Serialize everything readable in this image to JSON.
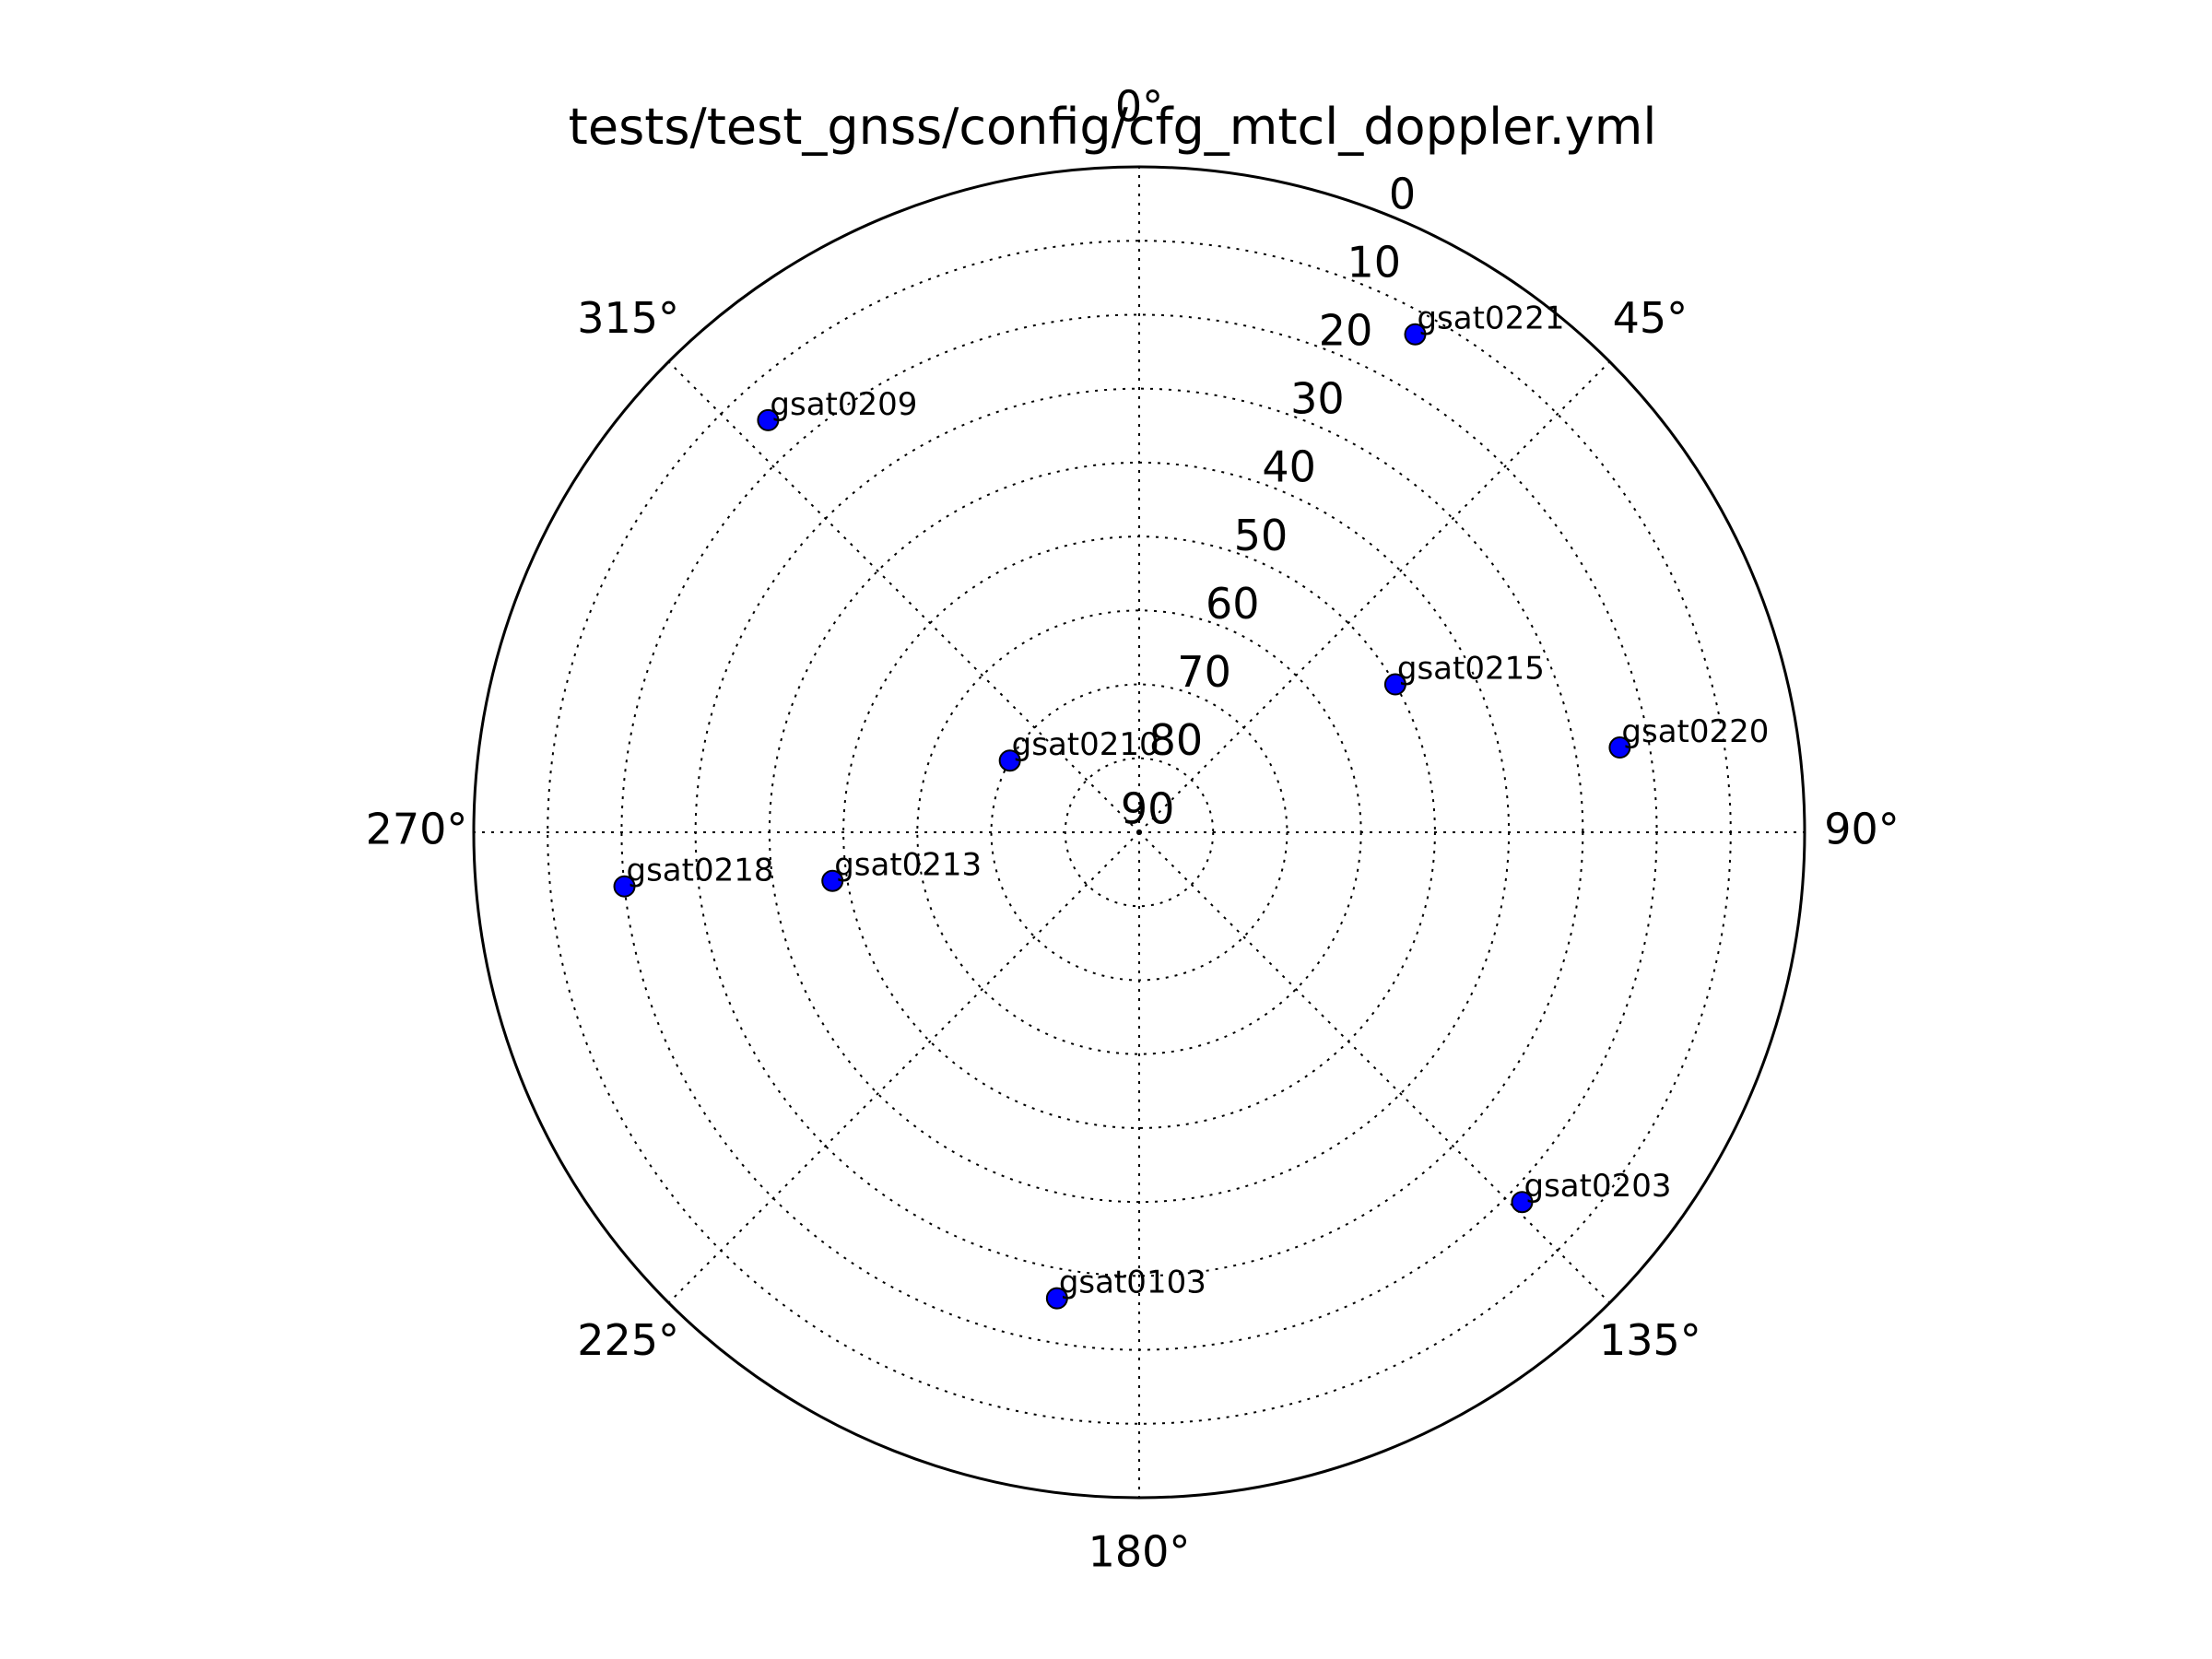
{
  "chart_data": {
    "type": "scatter",
    "projection": "polar",
    "title": "tests/test_gnss/config/cfg_mtcl_doppler.yml",
    "theta_direction": "clockwise",
    "theta_zero": "north",
    "angle_ticks": [
      {
        "value": 0,
        "label": "0°"
      },
      {
        "value": 45,
        "label": "45°"
      },
      {
        "value": 90,
        "label": "90°"
      },
      {
        "value": 135,
        "label": "135°"
      },
      {
        "value": 180,
        "label": "180°"
      },
      {
        "value": 225,
        "label": "225°"
      },
      {
        "value": 270,
        "label": "270°"
      },
      {
        "value": 315,
        "label": "315°"
      }
    ],
    "radial_ticks": [
      {
        "value": 0,
        "label": "0"
      },
      {
        "value": 10,
        "label": "10"
      },
      {
        "value": 20,
        "label": "20"
      },
      {
        "value": 30,
        "label": "30"
      },
      {
        "value": 40,
        "label": "40"
      },
      {
        "value": 50,
        "label": "50"
      },
      {
        "value": 60,
        "label": "60"
      },
      {
        "value": 70,
        "label": "70"
      },
      {
        "value": 80,
        "label": "80"
      },
      {
        "value": 90,
        "label": "90"
      }
    ],
    "radial_axis": "elevation (0 at rim, 90 at center)",
    "rlim": [
      0,
      90
    ],
    "grid": true,
    "marker_color": "#0000ff",
    "points": [
      {
        "name": "gsat0221",
        "azimuth": 29,
        "elevation": 13
      },
      {
        "name": "gsat0209",
        "azimuth": 318,
        "elevation": 15
      },
      {
        "name": "gsat0215",
        "azimuth": 60,
        "elevation": 50
      },
      {
        "name": "gsat0220",
        "azimuth": 80,
        "elevation": 24
      },
      {
        "name": "gsat0210",
        "azimuth": 299,
        "elevation": 70
      },
      {
        "name": "gsat0213",
        "azimuth": 261,
        "elevation": 48
      },
      {
        "name": "gsat0218",
        "azimuth": 264,
        "elevation": 20
      },
      {
        "name": "gsat0203",
        "azimuth": 134,
        "elevation": 18
      },
      {
        "name": "gsat0103",
        "azimuth": 190,
        "elevation": 26
      }
    ]
  }
}
